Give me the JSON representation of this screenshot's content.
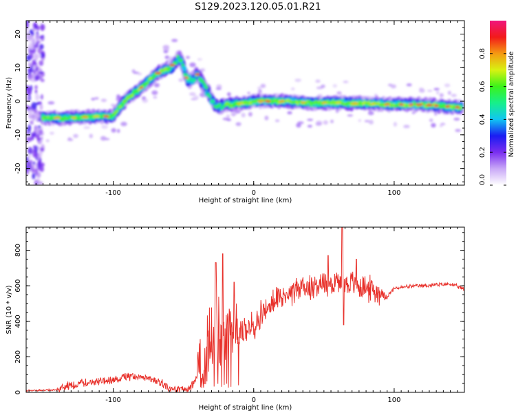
{
  "figure_title": "S129.2023.120.05.01.R21",
  "chart_data": [
    {
      "type": "heatmap",
      "title": "",
      "xlabel": "Height of straight line (km)",
      "ylabel": "Frequency (Hz)",
      "xlim": [
        -162,
        150
      ],
      "ylim": [
        -25,
        24
      ],
      "xticks": [
        -100,
        0,
        100
      ],
      "yticks": [
        -20,
        -10,
        0,
        10,
        20
      ],
      "colorbar": {
        "label": "Normalized spectral amplitude",
        "range": [
          0,
          1
        ],
        "ticks": [
          0.0,
          0.2,
          0.4,
          0.6,
          0.8
        ],
        "colors": [
          "#ffffff",
          "#c9a8f7",
          "#7a2ef0",
          "#1a1cf2",
          "#11c6f2",
          "#16f08a",
          "#3cf21a",
          "#d8f212",
          "#f59a12",
          "#f21a1a",
          "#f0167c"
        ]
      },
      "ridge": {
        "x": [
          -150,
          -130,
          -110,
          -100,
          -96,
          -90,
          -80,
          -70,
          -60,
          -52,
          -48,
          -44,
          -40,
          -36,
          -32,
          -28,
          -24,
          -20,
          -15,
          -5,
          0,
          20,
          40,
          60,
          80,
          100,
          120,
          145
        ],
        "y": [
          -5,
          -5,
          -4.5,
          -4.5,
          -2,
          1,
          4,
          8,
          10,
          13,
          7,
          6,
          8,
          5,
          2,
          -1,
          -2,
          -1,
          -1,
          -0.5,
          0,
          0,
          -0.5,
          -0.5,
          -0.7,
          -1,
          -1,
          -1.8
        ]
      },
      "grid": false
    },
    {
      "type": "line",
      "title": "",
      "xlabel": "Height of straight line (km)",
      "ylabel": "SNR (10 * v/v)",
      "xlim": [
        -162,
        150
      ],
      "ylim": [
        0,
        930
      ],
      "xticks": [
        -100,
        0,
        100
      ],
      "yticks": [
        0,
        200,
        400,
        600,
        800
      ],
      "color": "#e8322c",
      "envelope": {
        "x": [
          -162,
          -150,
          -140,
          -130,
          -120,
          -110,
          -100,
          -90,
          -80,
          -70,
          -65,
          -60,
          -50,
          -45,
          -40,
          -35,
          -30,
          -25,
          -20,
          -15,
          -10,
          -5,
          0,
          5,
          10,
          15,
          20,
          25,
          30,
          40,
          50,
          60,
          70,
          80,
          90,
          95,
          100,
          110,
          120,
          130,
          140,
          150
        ],
        "y": [
          10,
          12,
          15,
          40,
          55,
          60,
          65,
          90,
          85,
          70,
          50,
          20,
          15,
          25,
          80,
          220,
          300,
          330,
          350,
          330,
          340,
          350,
          380,
          430,
          470,
          510,
          540,
          560,
          580,
          600,
          610,
          620,
          610,
          590,
          560,
          540,
          585,
          595,
          600,
          605,
          610,
          580
        ]
      },
      "spikes": [
        {
          "x": -27,
          "y": 730
        },
        {
          "x": -22,
          "y": 780
        },
        {
          "x": -14,
          "y": 620
        },
        {
          "x": 63,
          "y": 930
        },
        {
          "x": 53,
          "y": 770
        },
        {
          "x": 73,
          "y": 750
        },
        {
          "x": 64,
          "y": 380
        }
      ],
      "grid": false
    }
  ]
}
